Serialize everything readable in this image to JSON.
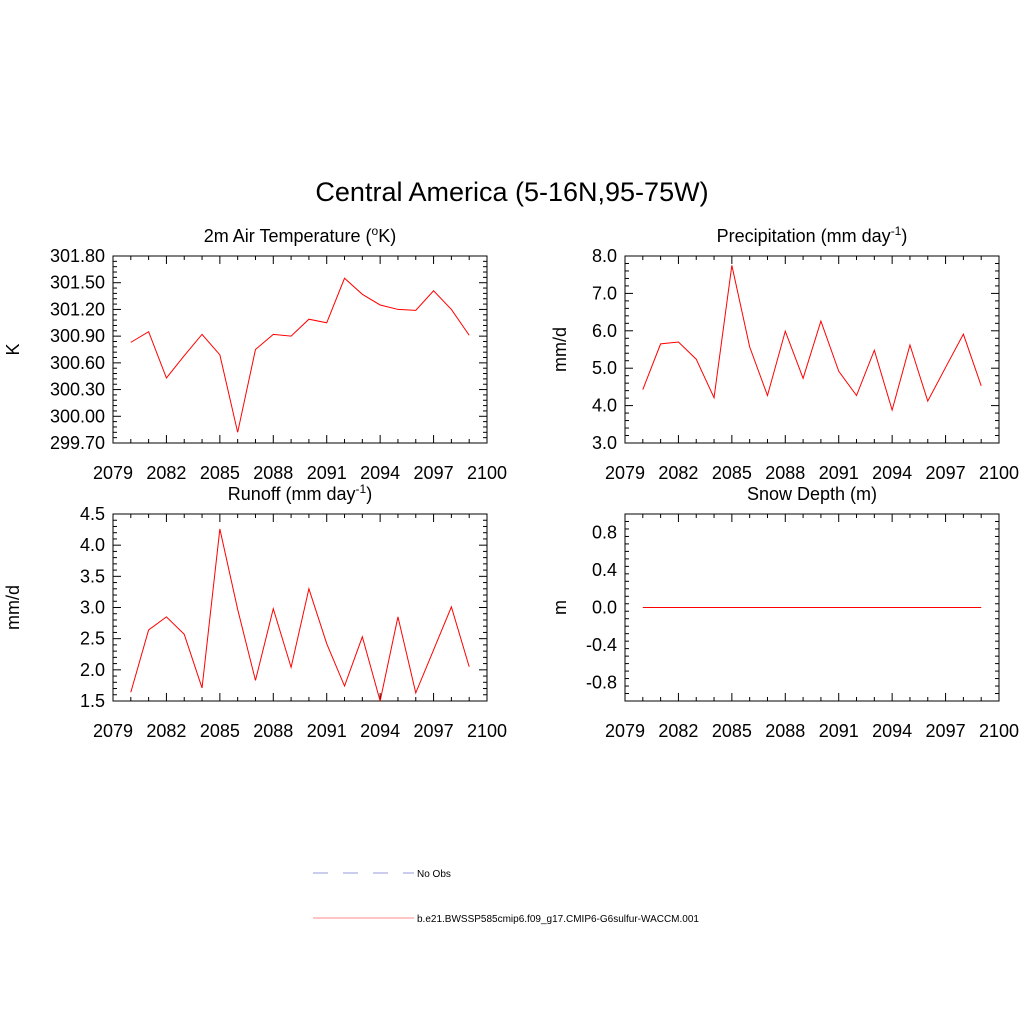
{
  "figure": {
    "title": "Central America (5-16N,95-75W)"
  },
  "legend": {
    "entries": [
      {
        "label": "No Obs",
        "color": "#9999dd",
        "dash": true
      },
      {
        "label": "b.e21.BWSSP585cmip6.f09_g17.CMIP6-G6sulfur-WACCM.001",
        "color": "#ff8888",
        "dash": false
      }
    ]
  },
  "chart_data": [
    {
      "type": "line",
      "title_main": "2m Air Temperature (",
      "title_sup": "o",
      "title_end": "K)",
      "ylabel": "K",
      "xlim": [
        2079,
        2100
      ],
      "ylim": [
        299.7,
        301.8
      ],
      "xticks": [
        2079,
        2082,
        2085,
        2088,
        2091,
        2094,
        2097,
        2100
      ],
      "xtick_labels": [
        "2079",
        "2082",
        "2085",
        "2088",
        "2091",
        "2094",
        "2097",
        "2100"
      ],
      "yticks": [
        299.7,
        300.0,
        300.3,
        300.6,
        300.9,
        301.2,
        301.5,
        301.8
      ],
      "ytick_labels": [
        "299.70",
        "300.00",
        "300.30",
        "300.60",
        "300.90",
        "301.20",
        "301.50",
        "301.80"
      ],
      "series": [
        {
          "color": "#ff0000",
          "x": [
            2080,
            2081,
            2082,
            2083,
            2084,
            2085,
            2086,
            2087,
            2088,
            2089,
            2090,
            2091,
            2092,
            2093,
            2094,
            2095,
            2096,
            2097,
            2098,
            2099
          ],
          "y": [
            300.83,
            300.95,
            300.43,
            300.68,
            300.92,
            300.69,
            299.82,
            300.75,
            300.92,
            300.9,
            301.09,
            301.05,
            301.55,
            301.37,
            301.25,
            301.2,
            301.19,
            301.41,
            301.2,
            300.91
          ]
        }
      ]
    },
    {
      "type": "line",
      "title_main": "Precipitation (mm day",
      "title_sup": "-1",
      "title_end": ")",
      "ylabel": "mm/d",
      "xlim": [
        2079,
        2100
      ],
      "ylim": [
        3.0,
        8.0
      ],
      "xticks": [
        2079,
        2082,
        2085,
        2088,
        2091,
        2094,
        2097,
        2100
      ],
      "xtick_labels": [
        "2079",
        "2082",
        "2085",
        "2088",
        "2091",
        "2094",
        "2097",
        "2100"
      ],
      "yticks": [
        3.0,
        4.0,
        5.0,
        6.0,
        7.0,
        8.0
      ],
      "ytick_labels": [
        "3.0",
        "4.0",
        "5.0",
        "6.0",
        "7.0",
        "8.0"
      ],
      "series": [
        {
          "color": "#ff0000",
          "x": [
            2080,
            2081,
            2082,
            2083,
            2084,
            2085,
            2086,
            2087,
            2088,
            2089,
            2090,
            2091,
            2092,
            2093,
            2094,
            2095,
            2096,
            2097,
            2098,
            2099
          ],
          "y": [
            4.43,
            5.65,
            5.7,
            5.24,
            4.21,
            7.75,
            5.57,
            4.27,
            5.99,
            4.73,
            6.26,
            4.92,
            4.27,
            5.48,
            3.88,
            5.62,
            4.12,
            5.02,
            5.91,
            4.53
          ]
        }
      ]
    },
    {
      "type": "line",
      "title_main": "Runoff (mm day",
      "title_sup": "-1",
      "title_end": ")",
      "ylabel": "mm/d",
      "xlim": [
        2079,
        2100
      ],
      "ylim": [
        1.5,
        4.5
      ],
      "xticks": [
        2079,
        2082,
        2085,
        2088,
        2091,
        2094,
        2097,
        2100
      ],
      "xtick_labels": [
        "2079",
        "2082",
        "2085",
        "2088",
        "2091",
        "2094",
        "2097",
        "2100"
      ],
      "yticks": [
        1.5,
        2.0,
        2.5,
        3.0,
        3.5,
        4.0,
        4.5
      ],
      "ytick_labels": [
        "1.5",
        "2.0",
        "2.5",
        "3.0",
        "3.5",
        "4.0",
        "4.5"
      ],
      "series": [
        {
          "color": "#ff0000",
          "x": [
            2080,
            2081,
            2082,
            2083,
            2084,
            2085,
            2086,
            2087,
            2088,
            2089,
            2090,
            2091,
            2092,
            2093,
            2094,
            2095,
            2096,
            2097,
            2098,
            2099
          ],
          "y": [
            1.64,
            2.64,
            2.85,
            2.57,
            1.71,
            4.26,
            2.97,
            1.83,
            2.98,
            2.04,
            3.3,
            2.42,
            1.74,
            2.53,
            1.5,
            2.85,
            1.63,
            2.32,
            3.01,
            2.05
          ]
        }
      ]
    },
    {
      "type": "line",
      "title_main": "Snow Depth (m)",
      "title_sup": "",
      "title_end": "",
      "ylabel": "m",
      "xlim": [
        2079,
        2100
      ],
      "ylim": [
        -1.0,
        1.0
      ],
      "xticks": [
        2079,
        2082,
        2085,
        2088,
        2091,
        2094,
        2097,
        2100
      ],
      "xtick_labels": [
        "2079",
        "2082",
        "2085",
        "2088",
        "2091",
        "2094",
        "2097",
        "2100"
      ],
      "yticks": [
        -0.8,
        -0.4,
        0.0,
        0.4,
        0.8
      ],
      "ytick_labels": [
        "-0.8",
        "-0.4",
        "0.0",
        "0.4",
        "0.8"
      ],
      "series": [
        {
          "color": "#ff0000",
          "x": [
            2080,
            2081,
            2082,
            2083,
            2084,
            2085,
            2086,
            2087,
            2088,
            2089,
            2090,
            2091,
            2092,
            2093,
            2094,
            2095,
            2096,
            2097,
            2098,
            2099
          ],
          "y": [
            0,
            0,
            0,
            0,
            0,
            0,
            0,
            0,
            0,
            0,
            0,
            0,
            0,
            0,
            0,
            0,
            0,
            0,
            0,
            0
          ]
        }
      ]
    }
  ]
}
